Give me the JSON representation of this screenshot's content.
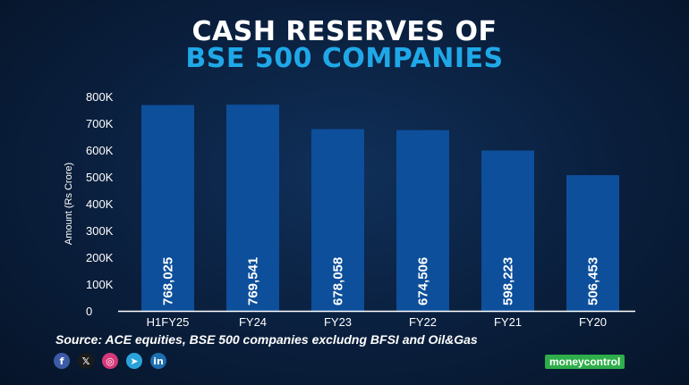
{
  "header": {
    "title_line1": "CASH RESERVES OF",
    "title_line2": "BSE 500 COMPANIES"
  },
  "chart_data": {
    "type": "bar",
    "categories": [
      "H1FY25",
      "FY24",
      "FY23",
      "FY22",
      "FY21",
      "FY20"
    ],
    "values": [
      768025,
      769541,
      678058,
      674506,
      598223,
      506453
    ],
    "data_labels": [
      "768,025",
      "769,541",
      "678,058",
      "674,506",
      "598,223",
      "506,453"
    ],
    "ylabel": "Amount (Rs Crore)",
    "ylim": [
      0,
      800000
    ],
    "yticks": [
      {
        "value": 0,
        "label": "0"
      },
      {
        "value": 100000,
        "label": "100K"
      },
      {
        "value": 200000,
        "label": "200K"
      },
      {
        "value": 300000,
        "label": "300K"
      },
      {
        "value": 400000,
        "label": "400K"
      },
      {
        "value": 500000,
        "label": "500K"
      },
      {
        "value": 600000,
        "label": "600K"
      },
      {
        "value": 700000,
        "label": "700K"
      },
      {
        "value": 800000,
        "label": "800K"
      }
    ],
    "grid": false,
    "bar_color": "#0d4f9a"
  },
  "footer": {
    "source": "Source: ACE equities, BSE 500 companies excludng BFSI and Oil&Gas",
    "brand": "moneycontrol",
    "social_icons": [
      {
        "name": "facebook-icon",
        "glyph": "f",
        "color": "#3b5ba8"
      },
      {
        "name": "x-icon",
        "glyph": "𝕏",
        "color": "#1b1b1b"
      },
      {
        "name": "instagram-icon",
        "glyph": "◎",
        "color": "#d6387a"
      },
      {
        "name": "telegram-icon",
        "glyph": "➤",
        "color": "#2aa3db"
      },
      {
        "name": "linkedin-icon",
        "glyph": "in",
        "color": "#1c6fb0"
      }
    ]
  }
}
